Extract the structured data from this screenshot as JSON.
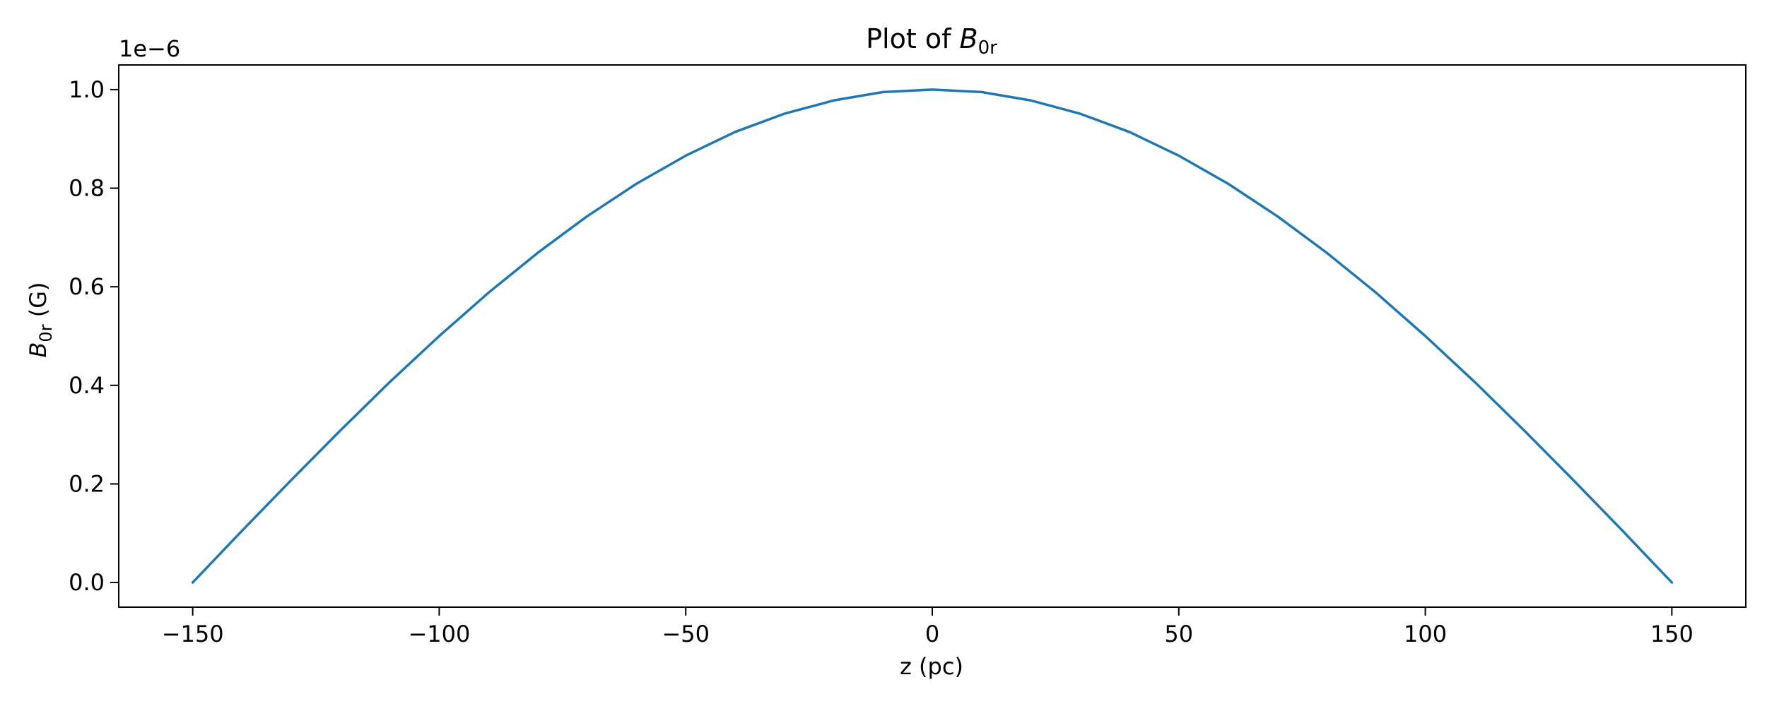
{
  "chart_data": {
    "type": "line",
    "title": {
      "prefix": "Plot of ",
      "symbol": "B",
      "subscript": "0r"
    },
    "xlabel": "z (pc)",
    "ylabel": {
      "symbol": "B",
      "subscript": "0r",
      "suffix": " (G)"
    },
    "xlim": [
      -165,
      165
    ],
    "ylim": [
      -0.05,
      1.05
    ],
    "y_scale_factor": "1e−6",
    "x_ticks": [
      -150,
      -100,
      -50,
      0,
      50,
      100,
      150
    ],
    "x_tick_labels": [
      "−150",
      "−100",
      "−50",
      "0",
      "50",
      "100",
      "150"
    ],
    "y_ticks": [
      0.0,
      0.2,
      0.4,
      0.6,
      0.8,
      1.0
    ],
    "y_tick_labels": [
      "0.0",
      "0.2",
      "0.4",
      "0.6",
      "0.8",
      "1.0"
    ],
    "grid": false,
    "series": [
      {
        "color": "#1f77b4",
        "x": [
          -150,
          -140,
          -130,
          -120,
          -110,
          -100,
          -90,
          -80,
          -70,
          -60,
          -50,
          -40,
          -30,
          -20,
          -10,
          0,
          10,
          20,
          30,
          40,
          50,
          60,
          70,
          80,
          90,
          100,
          110,
          120,
          130,
          140,
          150
        ],
        "y": [
          0.0,
          0.105,
          0.208,
          0.309,
          0.407,
          0.5,
          0.588,
          0.669,
          0.743,
          0.809,
          0.866,
          0.914,
          0.951,
          0.978,
          0.995,
          1.0,
          0.995,
          0.978,
          0.951,
          0.914,
          0.866,
          0.809,
          0.743,
          0.669,
          0.588,
          0.5,
          0.407,
          0.309,
          0.208,
          0.105,
          0.0
        ]
      }
    ]
  }
}
